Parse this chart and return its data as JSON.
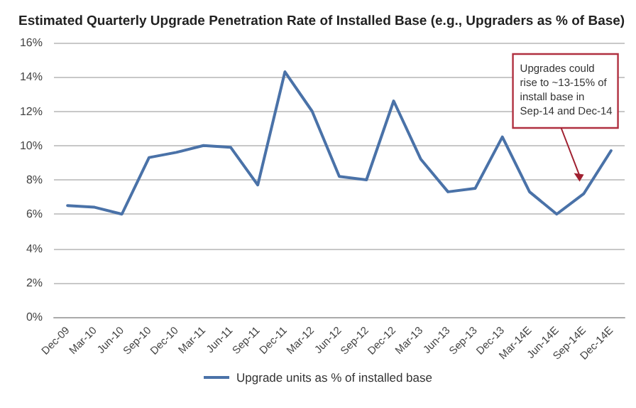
{
  "chart_data": {
    "type": "line",
    "title": "Estimated Quarterly Upgrade Penetration Rate of Installed Base (e.g., Upgraders as % of Base)",
    "categories": [
      "Dec-09",
      "Mar-10",
      "Jun-10",
      "Sep-10",
      "Dec-10",
      "Mar-11",
      "Jun-11",
      "Sep-11",
      "Dec-11",
      "Mar-12",
      "Jun-12",
      "Sep-12",
      "Dec-12",
      "Mar-13",
      "Jun-13",
      "Sep-13",
      "Dec-13",
      "Mar-14E",
      "Jun-14E",
      "Sep-14E",
      "Dec-14E"
    ],
    "series": [
      {
        "name": "Upgrade units as % of installed base",
        "color": "#4a72a8",
        "values": [
          6.5,
          6.4,
          6.0,
          9.3,
          9.6,
          10.0,
          9.9,
          7.7,
          14.3,
          12.0,
          8.2,
          8.0,
          12.6,
          9.2,
          7.3,
          7.5,
          10.5,
          7.3,
          6.0,
          7.2,
          9.7
        ]
      }
    ],
    "ylim": [
      0,
      16
    ],
    "yticks": [
      {
        "value": 0,
        "label": "0%"
      },
      {
        "value": 2,
        "label": "2%"
      },
      {
        "value": 4,
        "label": "4%"
      },
      {
        "value": 6,
        "label": "6%"
      },
      {
        "value": 8,
        "label": "8%"
      },
      {
        "value": 10,
        "label": "10%"
      },
      {
        "value": 12,
        "label": "12%"
      },
      {
        "value": 14,
        "label": "14%"
      },
      {
        "value": 16,
        "label": "16%"
      }
    ],
    "grid": "y",
    "legend": "bottom",
    "marker": "none",
    "line_style": "solid",
    "annotations": [
      {
        "text": "Upgrades could rise to ~13-15% of install base in Sep-14 and Dec-14",
        "x": "Sep-14E",
        "y": 7.9
      }
    ]
  }
}
